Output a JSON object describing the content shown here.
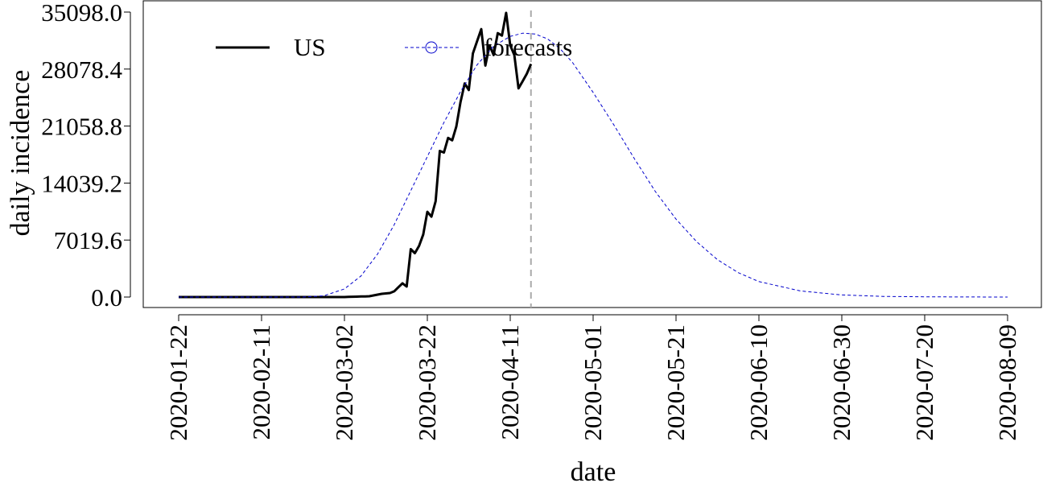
{
  "chart_data": {
    "type": "line",
    "xlabel": "date",
    "ylabel": "daily incidence",
    "ylim": [
      0,
      35098
    ],
    "y_ticks": [
      "0.0",
      "7019.6",
      "14039.2",
      "21058.8",
      "28078.4",
      "35098.0"
    ],
    "y_tick_values": [
      0,
      7019.6,
      14039.2,
      21058.8,
      28078.4,
      35098.0
    ],
    "x_ticks": [
      "2020-01-22",
      "2020-02-11",
      "2020-03-02",
      "2020-03-22",
      "2020-04-11",
      "2020-05-01",
      "2020-05-21",
      "2020-06-10",
      "2020-06-30",
      "2020-07-20",
      "2020-08-09"
    ],
    "xlim": [
      "2020-01-13",
      "2020-08-16"
    ],
    "forecast_start": "2020-04-16",
    "legend": {
      "position": "top-left",
      "entries": [
        {
          "label": "US",
          "style": "solid",
          "color": "#000000"
        },
        {
          "label": "forecasts",
          "style": "dashed-circle",
          "color": "#0000cc"
        }
      ]
    },
    "series": [
      {
        "name": "US",
        "color": "#000000",
        "x": [
          "2020-01-22",
          "2020-02-01",
          "2020-02-11",
          "2020-02-21",
          "2020-03-02",
          "2020-03-03",
          "2020-03-04",
          "2020-03-05",
          "2020-03-06",
          "2020-03-07",
          "2020-03-08",
          "2020-03-09",
          "2020-03-10",
          "2020-03-11",
          "2020-03-12",
          "2020-03-13",
          "2020-03-14",
          "2020-03-15",
          "2020-03-16",
          "2020-03-17",
          "2020-03-18",
          "2020-03-19",
          "2020-03-20",
          "2020-03-21",
          "2020-03-22",
          "2020-03-23",
          "2020-03-24",
          "2020-03-25",
          "2020-03-26",
          "2020-03-27",
          "2020-03-28",
          "2020-03-29",
          "2020-03-30",
          "2020-03-31",
          "2020-04-01",
          "2020-04-02",
          "2020-04-03",
          "2020-04-04",
          "2020-04-05",
          "2020-04-06",
          "2020-04-07",
          "2020-04-08",
          "2020-04-09",
          "2020-04-10",
          "2020-04-11",
          "2020-04-12",
          "2020-04-13",
          "2020-04-14",
          "2020-04-15",
          "2020-04-16"
        ],
        "y": [
          0,
          0,
          0,
          0,
          0,
          30,
          40,
          50,
          70,
          80,
          100,
          200,
          300,
          400,
          450,
          500,
          700,
          1200,
          1700,
          1300,
          5900,
          5400,
          6300,
          7700,
          10500,
          9900,
          11800,
          18000,
          17800,
          19600,
          19300,
          21000,
          24000,
          26300,
          25500,
          30000,
          31500,
          33000,
          28500,
          31000,
          29800,
          32500,
          32200,
          35000,
          31000,
          29800,
          25700,
          26600,
          27500,
          28700
        ]
      },
      {
        "name": "forecasts",
        "color": "#0000cc",
        "x": [
          "2020-01-22",
          "2020-02-01",
          "2020-02-11",
          "2020-02-21",
          "2020-02-26",
          "2020-03-02",
          "2020-03-06",
          "2020-03-10",
          "2020-03-14",
          "2020-03-18",
          "2020-03-22",
          "2020-03-26",
          "2020-03-30",
          "2020-04-03",
          "2020-04-07",
          "2020-04-11",
          "2020-04-14",
          "2020-04-17",
          "2020-04-20",
          "2020-04-23",
          "2020-04-26",
          "2020-05-01",
          "2020-05-06",
          "2020-05-11",
          "2020-05-16",
          "2020-05-21",
          "2020-05-26",
          "2020-05-31",
          "2020-06-05",
          "2020-06-10",
          "2020-06-20",
          "2020-06-30",
          "2020-07-10",
          "2020-07-20",
          "2020-07-30",
          "2020-08-09"
        ],
        "y": [
          0,
          0,
          0,
          0,
          150,
          1000,
          2600,
          5300,
          8900,
          13100,
          17300,
          21500,
          25300,
          28600,
          30900,
          32100,
          32500,
          32400,
          31800,
          30600,
          28900,
          25200,
          21200,
          17000,
          13000,
          9600,
          6800,
          4600,
          3000,
          1900,
          750,
          260,
          80,
          25,
          5,
          0
        ]
      }
    ]
  }
}
